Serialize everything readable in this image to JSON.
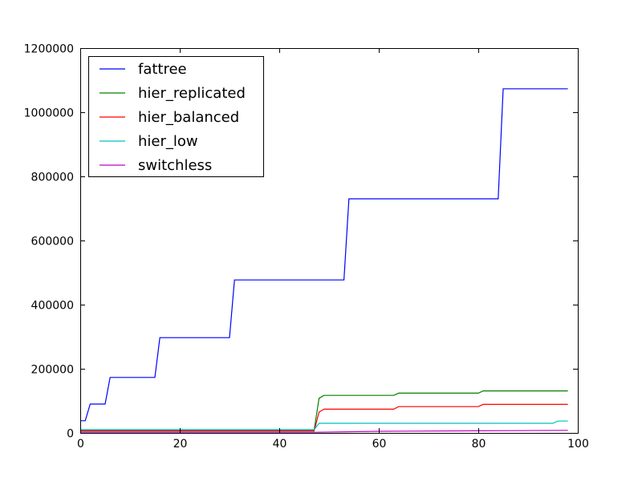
{
  "chart_data": {
    "type": "line",
    "title": "",
    "xlabel": "",
    "ylabel": "",
    "xlim": [
      0,
      100
    ],
    "ylim": [
      0,
      1200000
    ],
    "xticks": [
      0,
      20,
      40,
      60,
      80,
      100
    ],
    "yticks": [
      0,
      200000,
      400000,
      600000,
      800000,
      1000000,
      1200000
    ],
    "grid": false,
    "legend_position": "top-left",
    "series": [
      {
        "name": "fattree",
        "color": "#0000ff",
        "points": [
          [
            0,
            38000
          ],
          [
            1,
            38000
          ],
          [
            2,
            90000
          ],
          [
            5,
            90000
          ],
          [
            6,
            173000
          ],
          [
            15,
            173000
          ],
          [
            16,
            297000
          ],
          [
            30,
            297000
          ],
          [
            31,
            477000
          ],
          [
            53,
            477000
          ],
          [
            54,
            730000
          ],
          [
            84,
            730000
          ],
          [
            85,
            1073000
          ],
          [
            98,
            1073000
          ]
        ]
      },
      {
        "name": "hier_replicated",
        "color": "#008000",
        "points": [
          [
            0,
            8000
          ],
          [
            47,
            8000
          ],
          [
            48,
            108000
          ],
          [
            49,
            117000
          ],
          [
            63,
            117000
          ],
          [
            64,
            124000
          ],
          [
            80,
            124000
          ],
          [
            81,
            131000
          ],
          [
            98,
            131000
          ]
        ]
      },
      {
        "name": "hier_balanced",
        "color": "#ff0000",
        "points": [
          [
            0,
            6000
          ],
          [
            47,
            6000
          ],
          [
            48,
            65000
          ],
          [
            49,
            74000
          ],
          [
            63,
            74000
          ],
          [
            64,
            82000
          ],
          [
            80,
            82000
          ],
          [
            81,
            89000
          ],
          [
            98,
            89000
          ]
        ]
      },
      {
        "name": "hier_low",
        "color": "#00bfbf",
        "points": [
          [
            0,
            10000
          ],
          [
            47,
            10000
          ],
          [
            48,
            30000
          ],
          [
            95,
            30000
          ],
          [
            96,
            37000
          ],
          [
            98,
            37000
          ]
        ]
      },
      {
        "name": "switchless",
        "color": "#bf00bf",
        "points": [
          [
            0,
            2000
          ],
          [
            47,
            2000
          ],
          [
            60,
            5000
          ],
          [
            80,
            6500
          ],
          [
            98,
            8000
          ]
        ]
      }
    ]
  }
}
